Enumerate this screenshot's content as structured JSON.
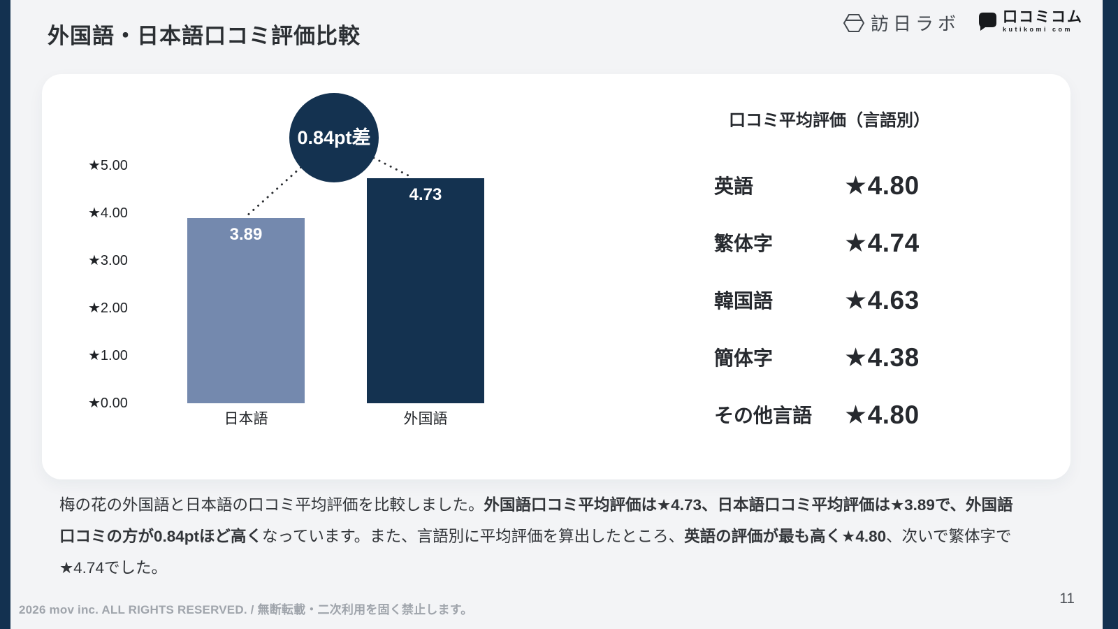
{
  "page": {
    "title": "外国語・日本語口コミ評価比較",
    "page_number": "11",
    "footer": "2026 mov inc. ALL RIGHTS RESERVED. / 無断転載・二次利用を固く禁止します。"
  },
  "logos": {
    "houjitsu_lab": "訪日ラボ",
    "kutikomi_main": "口コミコム",
    "kutikomi_sub": "kutikomi com"
  },
  "colors": {
    "accent_navy": "#143250",
    "bar_light_blue": "#7489ae",
    "background": "#f3f4f6",
    "card": "#ffffff",
    "dotted_line": "#2a2d31"
  },
  "chart_data": {
    "type": "bar",
    "title": "",
    "categories": [
      "日本語",
      "外国語"
    ],
    "values": [
      3.89,
      4.73
    ],
    "bar_labels": [
      "3.89",
      "4.73"
    ],
    "bar_colors": [
      "#7489ae",
      "#143250"
    ],
    "annotation": "0.84pt差",
    "y_ticks": [
      "★5.00",
      "★4.00",
      "★3.00",
      "★2.00",
      "★1.00",
      "★0.00"
    ],
    "ylim": [
      0,
      5
    ],
    "grid": false,
    "legend": false,
    "side_table": {
      "title": "口コミ平均評価（言語別）",
      "rows": [
        {
          "label": "英語",
          "value": "★4.80"
        },
        {
          "label": "繁体字",
          "value": "★4.74"
        },
        {
          "label": "韓国語",
          "value": "★4.63"
        },
        {
          "label": "簡体字",
          "value": "★4.38"
        },
        {
          "label": "その他言語",
          "value": "★4.80"
        }
      ]
    }
  },
  "paragraph": {
    "segments": [
      {
        "text": "梅の花の外国語と日本語の口コミ平均評価を比較しました。",
        "bold": false
      },
      {
        "text": "外国語口コミ平均評価は★4.73、日本語口コミ平均評価は★3.89で、外国語口コミの方が0.84ptほど高く",
        "bold": true
      },
      {
        "text": "なっています。また、言語別に平均評価を算出したところ、",
        "bold": false
      },
      {
        "text": "英語の評価が最も高く★4.80",
        "bold": true
      },
      {
        "text": "、次いで繁体字で★4.74でした。",
        "bold": false
      }
    ]
  }
}
